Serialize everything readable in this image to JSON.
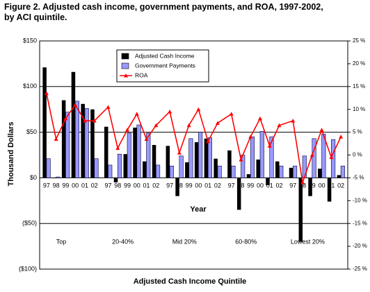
{
  "chart_data": {
    "type": "bar",
    "title": "Figure 2. Adjusted cash income, government payments, and ROA, 1997-2002, by ACI quintile.",
    "x_label": "Year",
    "x_group_label": "Adjusted Cash Income Quintile",
    "y_label": "Thousand Dollars",
    "groups": [
      "Top",
      "20-40%",
      "Mid 20%",
      "60-80%",
      "Lowest 20%"
    ],
    "categories": [
      "97",
      "98",
      "99",
      "00",
      "01",
      "02",
      "97",
      "98",
      "99",
      "00",
      "01",
      "02",
      "97",
      "98",
      "99",
      "00",
      "01",
      "02",
      "97",
      "98",
      "99",
      "00",
      "01",
      "02",
      "97",
      "98",
      "99",
      "00",
      "01",
      "02"
    ],
    "series": [
      {
        "name": "Adjusted Cash Income",
        "color": "#000000",
        "values": [
          121,
          0,
          85,
          116,
          81,
          75,
          56,
          -5,
          26,
          55,
          18,
          36,
          35,
          -20,
          17,
          39,
          43,
          21,
          30,
          -35,
          4,
          20,
          -8,
          18,
          11,
          -70,
          -20,
          10,
          -26,
          3
        ]
      },
      {
        "name": "Government Payments",
        "color": "#9999ff",
        "values": [
          21,
          1,
          72,
          84,
          76,
          21,
          14,
          26,
          49,
          58,
          49,
          14,
          13,
          24,
          43,
          50,
          44,
          13,
          13,
          25,
          45,
          51,
          45,
          13,
          13,
          24,
          43,
          48,
          42,
          13
        ]
      },
      {
        "name": "ROA",
        "color": "#ff0000",
        "axis": "y2",
        "values": [
          13.5,
          3.5,
          8,
          11,
          7.5,
          7.5,
          10.5,
          1.5,
          5.5,
          9,
          3.5,
          6.5,
          9.5,
          0.5,
          6.5,
          10,
          3,
          7,
          9,
          -1,
          4,
          8,
          2,
          6.5,
          7.5,
          -6,
          0,
          5.5,
          -0.5,
          4
        ]
      }
    ],
    "ylim": [
      -100,
      150
    ],
    "yticks": [
      {
        "value": -100,
        "label": "($100)"
      },
      {
        "value": -50,
        "label": "($50)"
      },
      {
        "value": 0,
        "label": "$0"
      },
      {
        "value": 50,
        "label": "$50"
      },
      {
        "value": 100,
        "label": "$100"
      },
      {
        "value": 150,
        "label": "$150"
      }
    ],
    "y2lim": [
      -25,
      25
    ],
    "y2ticks": [
      {
        "value": -25,
        "label": "-25 %"
      },
      {
        "value": -20,
        "label": "-20 %"
      },
      {
        "value": -15,
        "label": "-15 %"
      },
      {
        "value": -10,
        "label": "-10 %"
      },
      {
        "value": -5,
        "label": "-5 %"
      },
      {
        "value": 0,
        "label": "0 %"
      },
      {
        "value": 5,
        "label": "5 %"
      },
      {
        "value": 10,
        "label": "10 %"
      },
      {
        "value": 15,
        "label": "15 %"
      },
      {
        "value": 20,
        "label": "20 %"
      },
      {
        "value": 25,
        "label": "25 %"
      }
    ],
    "grid": true
  }
}
